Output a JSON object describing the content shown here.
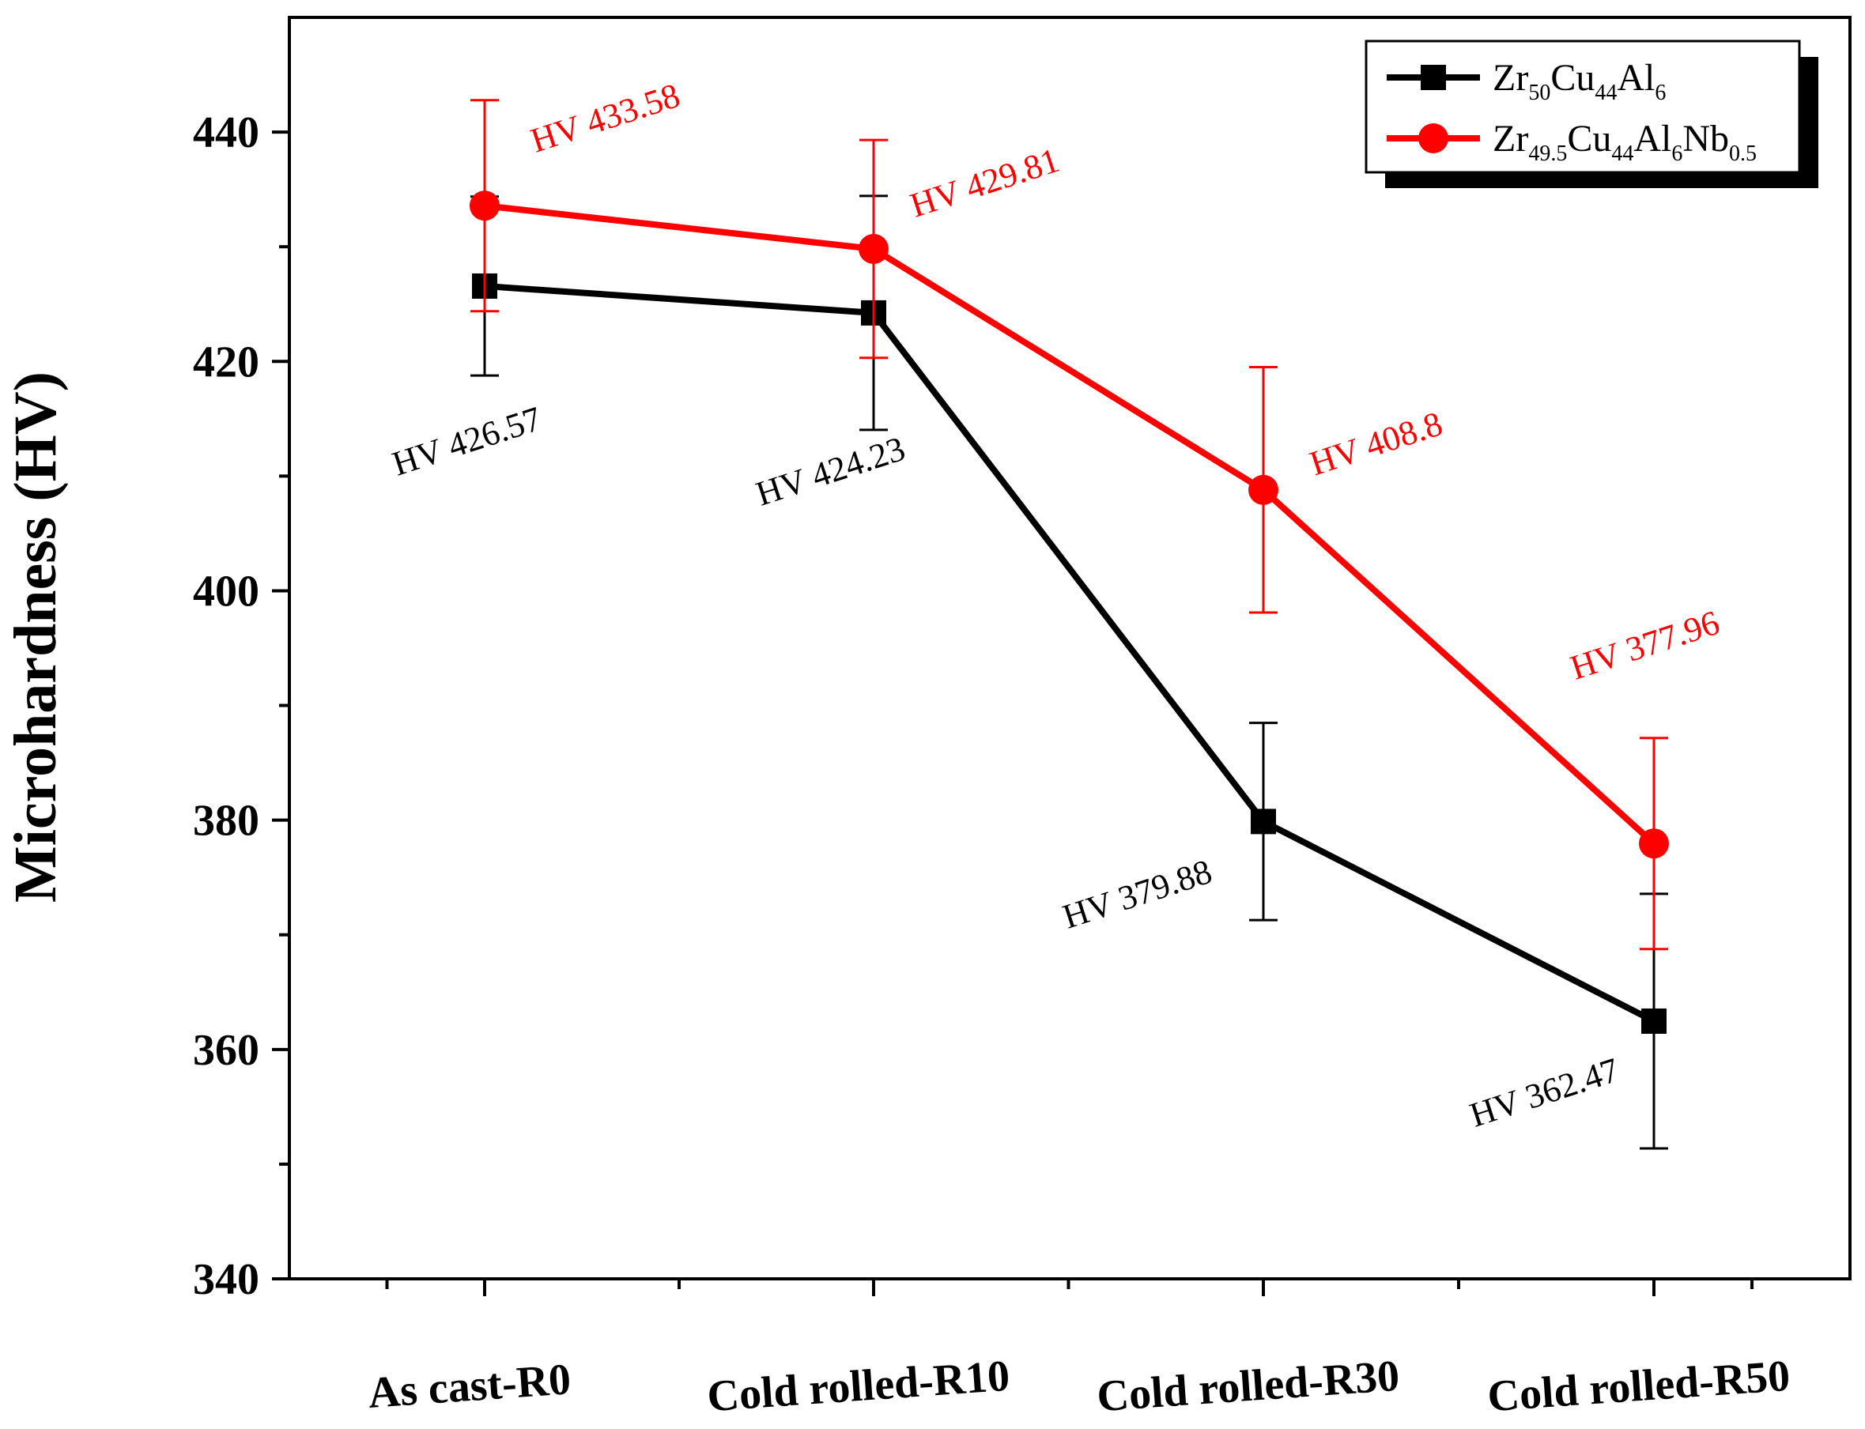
{
  "chart_data": {
    "type": "line",
    "title": "",
    "xlabel": "",
    "ylabel": "Microhardness (HV)",
    "ylim": [
      340,
      450
    ],
    "y_major_ticks": [
      340,
      360,
      380,
      400,
      420,
      440
    ],
    "grid": false,
    "legend_position": "top-right",
    "categories": [
      "As cast-R0",
      "Cold rolled-R10",
      "Cold rolled-R30",
      "Cold rolled-R50"
    ],
    "series": [
      {
        "name": "Zr50Cu44Al6",
        "legend_parts": [
          {
            "text": "Zr",
            "sub": false
          },
          {
            "text": "50",
            "sub": true
          },
          {
            "text": "Cu",
            "sub": false
          },
          {
            "text": "44",
            "sub": true
          },
          {
            "text": "Al",
            "sub": false
          },
          {
            "text": "6",
            "sub": true
          }
        ],
        "color": "#000000",
        "marker": "square",
        "values": [
          426.57,
          424.23,
          379.88,
          362.47
        ],
        "error": [
          7.8,
          10.2,
          8.6,
          11.1
        ],
        "labels": [
          "HV 426.57",
          "HV 424.23",
          "HV 379.88",
          "HV 362.47"
        ]
      },
      {
        "name": "Zr49.5Cu44Al6Nb0.5",
        "legend_parts": [
          {
            "text": "Zr",
            "sub": false
          },
          {
            "text": "49.5",
            "sub": true
          },
          {
            "text": "Cu",
            "sub": false
          },
          {
            "text": "44",
            "sub": true
          },
          {
            "text": "Al",
            "sub": false
          },
          {
            "text": "6",
            "sub": true
          },
          {
            "text": "Nb",
            "sub": false
          },
          {
            "text": "0.5",
            "sub": true
          }
        ],
        "color": "#ff0000",
        "marker": "circle",
        "values": [
          433.58,
          429.81,
          408.8,
          377.96
        ],
        "error": [
          9.2,
          9.5,
          10.7,
          9.2
        ],
        "labels": [
          "HV 433.58",
          "HV 429.81",
          "HV 408.8",
          "HV 377.96"
        ]
      }
    ]
  }
}
